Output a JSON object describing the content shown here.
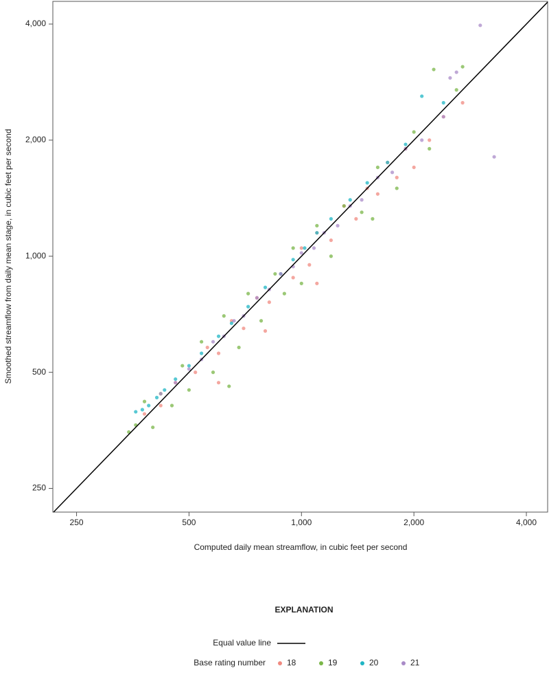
{
  "chart_data": {
    "type": "scatter",
    "x_label": "Computed daily mean streamflow, in cubic feet per second",
    "y_label": "Smoothed streamflow from daily mean stage, in cubic feet per second",
    "x_log": true,
    "y_log": true,
    "xlim": [
      216,
      4560
    ],
    "ylim": [
      217,
      4580
    ],
    "xticks": [
      250,
      500,
      {
        "value": 1000,
        "label": "1,000"
      },
      {
        "value": 2000,
        "label": "2,000"
      },
      {
        "value": 4000,
        "label": "4,000"
      }
    ],
    "yticks": [
      250,
      500,
      {
        "value": 1000,
        "label": "1,000"
      },
      {
        "value": 2000,
        "label": "2,000"
      },
      {
        "value": 4000,
        "label": "4,000"
      }
    ],
    "legend_title": "EXPLANATION",
    "reference_line_label": "Equal value line",
    "reference_line_color": "#000000",
    "series_legend_label": "Base rating number",
    "series": [
      {
        "name": "18",
        "color": "#f08a80",
        "x": [
          380,
          420,
          460,
          520,
          560,
          600,
          650,
          700,
          760,
          820,
          880,
          950,
          1000,
          1050,
          1100,
          1200,
          1300,
          1400,
          1500,
          1600,
          1700,
          1800,
          1900,
          2000,
          2200,
          2400,
          2700,
          600,
          800,
          1100
        ],
        "y": [
          390,
          410,
          470,
          500,
          580,
          560,
          680,
          650,
          780,
          760,
          900,
          880,
          1050,
          950,
          1150,
          1100,
          1350,
          1250,
          1500,
          1450,
          1750,
          1600,
          1900,
          1700,
          2000,
          2300,
          2500,
          470,
          640,
          850
        ]
      },
      {
        "name": "19",
        "color": "#7ab648",
        "x": [
          345,
          360,
          380,
          400,
          420,
          450,
          480,
          500,
          540,
          580,
          620,
          680,
          720,
          780,
          850,
          900,
          950,
          1000,
          1100,
          1200,
          1300,
          1450,
          1600,
          1800,
          2000,
          2200,
          2600,
          2260,
          640,
          1550,
          2700
        ],
        "y": [
          350,
          365,
          420,
          360,
          440,
          410,
          520,
          450,
          600,
          500,
          700,
          580,
          800,
          680,
          900,
          800,
          1050,
          850,
          1200,
          1000,
          1350,
          1300,
          1700,
          1500,
          2100,
          1900,
          2700,
          3050,
          460,
          1250,
          3100
        ]
      },
      {
        "name": "20",
        "color": "#1fb5c4",
        "x": [
          360,
          375,
          390,
          410,
          430,
          460,
          500,
          540,
          600,
          650,
          720,
          800,
          880,
          950,
          1020,
          1100,
          1200,
          1350,
          1500,
          1700,
          1900,
          2100,
          2400
        ],
        "y": [
          395,
          400,
          410,
          430,
          450,
          480,
          520,
          560,
          620,
          670,
          740,
          830,
          900,
          980,
          1050,
          1150,
          1250,
          1400,
          1550,
          1750,
          1950,
          2600,
          2500
        ]
      },
      {
        "name": "21",
        "color": "#a98bc8",
        "x": [
          420,
          460,
          500,
          540,
          580,
          620,
          660,
          700,
          760,
          820,
          880,
          950,
          1000,
          1080,
          1150,
          1250,
          1350,
          1450,
          1600,
          1750,
          1900,
          2100,
          2400,
          2600,
          3010,
          3280,
          2500
        ],
        "y": [
          440,
          470,
          510,
          540,
          600,
          620,
          680,
          700,
          780,
          820,
          900,
          940,
          1020,
          1050,
          1150,
          1200,
          1350,
          1400,
          1600,
          1650,
          1900,
          2000,
          2300,
          3000,
          3970,
          1810,
          2900
        ]
      }
    ]
  }
}
